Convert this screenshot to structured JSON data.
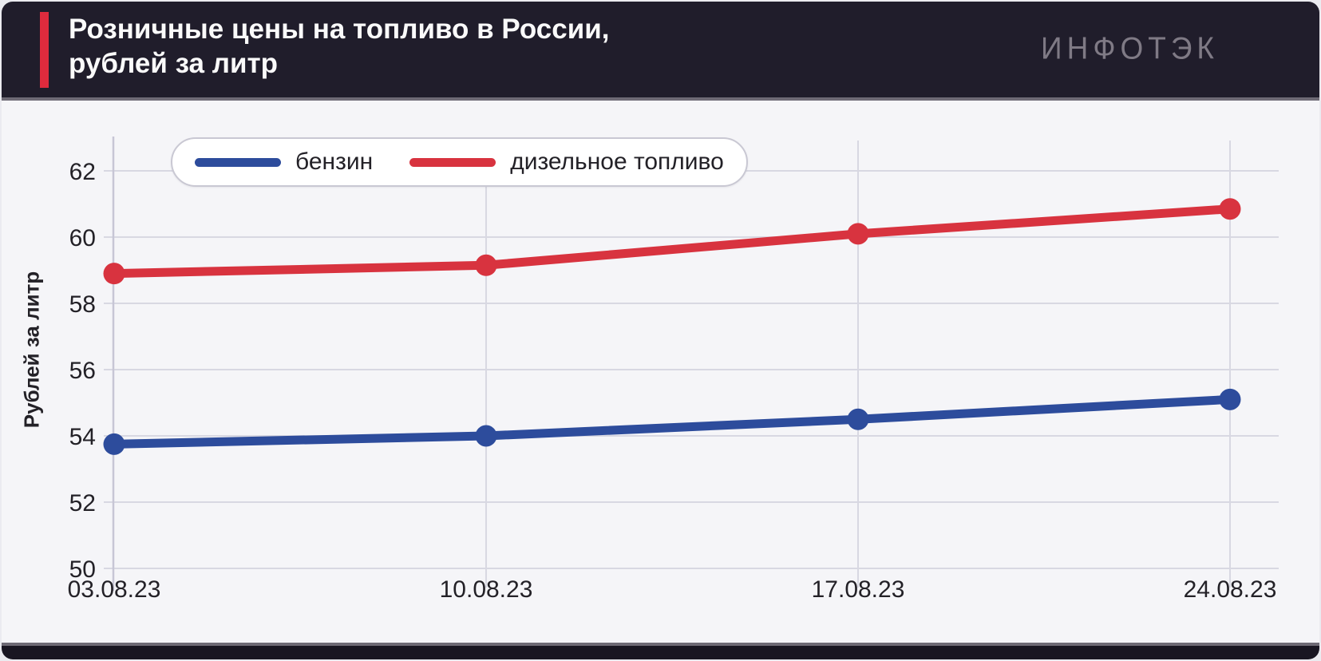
{
  "header": {
    "title": "Розничные цены на топливо в России,\nрублей за литр",
    "logo": "ИНФОТЭК"
  },
  "theme": {
    "page_bg": "#ebebf0",
    "header_bg": "#201d2b",
    "footer_bg": "#191622",
    "body_bg": "#f5f5f8",
    "divider_gray": "#6e6a75",
    "accent_red": "#de2b3d",
    "title_color": "#fafafa",
    "logo_color": "#7f7a85",
    "grid_color": "#d8d8e2",
    "axis_color": "#c7c6d5",
    "text_dark": "#232127",
    "legend_border": "#c9c8d3",
    "legend_bg": "#ffffff"
  },
  "chart_data": {
    "type": "line",
    "title": "Розничные цены на топливо в России, рублей за литр",
    "ylabel": "Рублей за литр",
    "xlabel": "",
    "x": [
      "03.08.23",
      "10.08.23",
      "17.08.23",
      "24.08.23"
    ],
    "ylim": [
      50,
      62
    ],
    "ytick_step": 2,
    "grid": true,
    "legend_position": "top-left",
    "series": [
      {
        "name": "бензин",
        "color": "#2d4c9c",
        "values": [
          53.75,
          54.0,
          54.5,
          55.1
        ]
      },
      {
        "name": "дизельное топливо",
        "color": "#d8333f",
        "values": [
          58.9,
          59.15,
          60.1,
          60.85
        ]
      }
    ]
  }
}
